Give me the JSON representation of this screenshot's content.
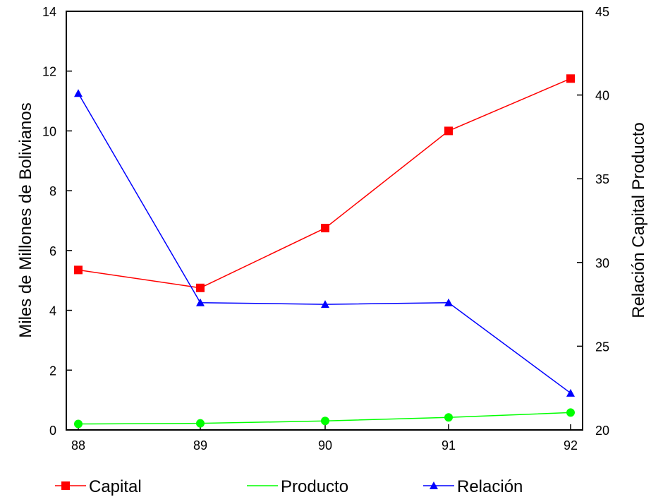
{
  "chart_data": {
    "type": "line",
    "x": [
      "88",
      "89",
      "90",
      "91",
      "92"
    ],
    "ylabel_left": "Miles de Millones de Bolivianos",
    "ylabel_right": "Relación Capital Producto",
    "ylim_left": [
      0,
      14
    ],
    "ylim_right": [
      20,
      45
    ],
    "yticks_left": [
      "0",
      "2",
      "4",
      "6",
      "8",
      "10",
      "12",
      "14"
    ],
    "yticks_right": [
      "20",
      "25",
      "30",
      "35",
      "40",
      "45"
    ],
    "grid": false,
    "legend_position": "bottom",
    "series": [
      {
        "name": "Capital",
        "axis": "left",
        "values": [
          5.35,
          4.75,
          6.75,
          10.0,
          11.75
        ],
        "color": "#ff0000",
        "marker": "square"
      },
      {
        "name": "Producto",
        "axis": "left",
        "values": [
          0.2,
          0.22,
          0.3,
          0.42,
          0.58
        ],
        "color": "#00ff00",
        "marker": "circle"
      },
      {
        "name": "Relación",
        "axis": "right",
        "values": [
          40.1,
          27.6,
          27.5,
          27.6,
          22.2
        ],
        "color": "#0000ff",
        "marker": "triangle"
      }
    ]
  }
}
